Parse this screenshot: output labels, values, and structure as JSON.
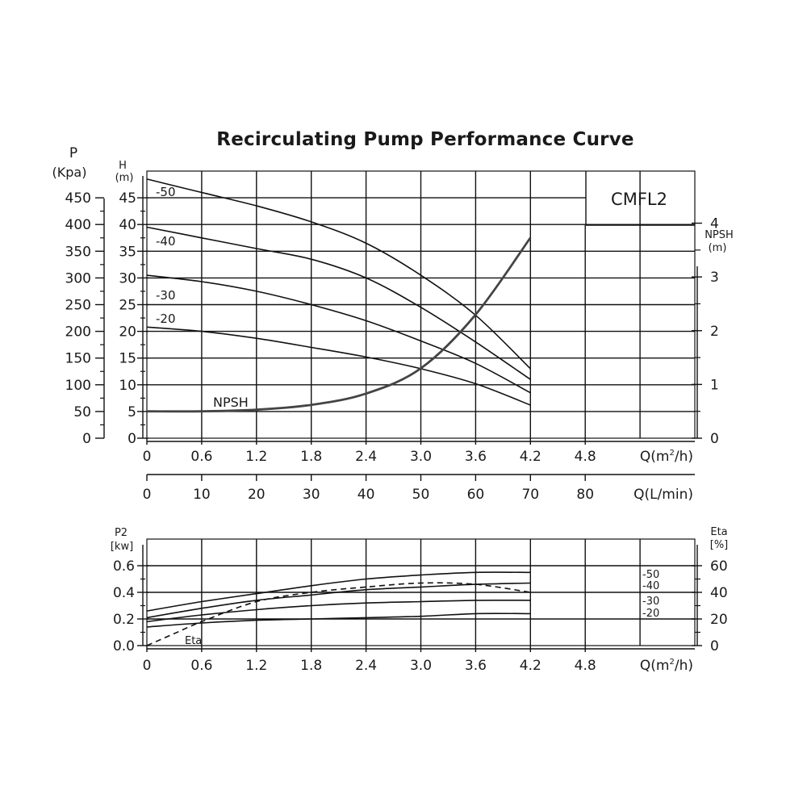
{
  "title": "Recirculating Pump Performance Curve",
  "model": "CMFL2",
  "chart_data": [
    {
      "type": "line",
      "title": "Recirculating Pump Performance Curve",
      "xlabel": "Q(m²/h)",
      "xlabel_parts": {
        "q": "Q(m",
        "sup": "2",
        "tail": "/h)"
      },
      "x_ticks": [
        "0",
        "0.6",
        "1.2",
        "1.8",
        "2.4",
        "3.0",
        "3.6",
        "4.2",
        "4.8"
      ],
      "xlim": [
        0,
        6.0
      ],
      "x2label": "Q(L/min)",
      "x2_ticks": [
        "0",
        "10",
        "20",
        "30",
        "40",
        "50",
        "60",
        "70",
        "80"
      ],
      "y_left_outer_label": {
        "name": "P",
        "unit": "(Kpa)"
      },
      "y_left_outer_ticks": [
        "0",
        "50",
        "100",
        "150",
        "200",
        "250",
        "300",
        "350",
        "400",
        "450"
      ],
      "y_left_label": {
        "name": "H",
        "unit": "(m)"
      },
      "y_left_ticks": [
        "0",
        "5",
        "10",
        "15",
        "20",
        "25",
        "30",
        "35",
        "40",
        "45"
      ],
      "ylim": [
        0,
        50
      ],
      "y_right_label": {
        "name": "NPSH",
        "unit": "(m)"
      },
      "y_right_ticks": [
        "0",
        "1",
        "2",
        "3",
        "4"
      ],
      "y_right_lim": [
        0,
        4
      ],
      "grid": true,
      "series": [
        {
          "name": "-50",
          "axis": "H",
          "x": [
            0,
            0.6,
            1.2,
            1.8,
            2.4,
            3.0,
            3.6,
            4.2
          ],
          "y": [
            48.5,
            46,
            43.5,
            40.5,
            36.5,
            30.5,
            23,
            13
          ]
        },
        {
          "name": "-40",
          "axis": "H",
          "x": [
            0,
            0.6,
            1.2,
            1.8,
            2.4,
            3.0,
            3.6,
            4.2
          ],
          "y": [
            39.5,
            37.5,
            35.5,
            33.5,
            30,
            24.5,
            18,
            11
          ]
        },
        {
          "name": "-30",
          "axis": "H",
          "x": [
            0,
            0.6,
            1.2,
            1.8,
            2.4,
            3.0,
            3.6,
            4.2
          ],
          "y": [
            30.5,
            29.3,
            27.5,
            25,
            22,
            18.2,
            14,
            8.5
          ]
        },
        {
          "name": "-20",
          "axis": "H",
          "x": [
            0,
            0.6,
            1.2,
            1.8,
            2.4,
            3.0,
            3.6,
            4.2
          ],
          "y": [
            20.8,
            20,
            18.7,
            17,
            15.2,
            13,
            10.2,
            6.2
          ]
        },
        {
          "name": "NPSH",
          "axis": "NPSH",
          "x": [
            0,
            0.6,
            1.2,
            1.8,
            2.4,
            3.0,
            3.6,
            4.2
          ],
          "y": [
            0.5,
            0.5,
            0.53,
            0.62,
            0.83,
            1.3,
            2.3,
            3.73
          ]
        }
      ],
      "series_labels": [
        "-50",
        "-40",
        "-30",
        "-20",
        "NPSH"
      ]
    },
    {
      "type": "line",
      "xlabel": "Q(m²/h)",
      "xlabel_parts": {
        "q": "Q(m",
        "sup": "2",
        "tail": "/h)"
      },
      "x_ticks": [
        "0",
        "0.6",
        "1.2",
        "1.8",
        "2.4",
        "3.0",
        "3.6",
        "4.2",
        "4.8"
      ],
      "xlim": [
        0,
        6.0
      ],
      "y_left_label": {
        "name": "P2",
        "unit": "[kw]"
      },
      "y_left_ticks": [
        "0.0",
        "0.2",
        "0.4",
        "0.6"
      ],
      "ylim": [
        0,
        0.6
      ],
      "y_right_label": {
        "name": "Eta",
        "unit": "[%]"
      },
      "y_right_ticks": [
        "0",
        "20",
        "40",
        "60"
      ],
      "y_right_lim": [
        0,
        60
      ],
      "grid": true,
      "series": [
        {
          "name": "-50",
          "axis": "P2",
          "x": [
            0,
            0.6,
            1.2,
            1.8,
            2.4,
            3.0,
            3.6,
            4.2
          ],
          "y": [
            0.26,
            0.33,
            0.39,
            0.45,
            0.5,
            0.53,
            0.55,
            0.55
          ]
        },
        {
          "name": "-40",
          "axis": "P2",
          "x": [
            0,
            0.6,
            1.2,
            1.8,
            2.4,
            3.0,
            3.6,
            4.2
          ],
          "y": [
            0.21,
            0.28,
            0.34,
            0.38,
            0.42,
            0.44,
            0.46,
            0.47
          ]
        },
        {
          "name": "-30",
          "axis": "P2",
          "x": [
            0,
            0.6,
            1.2,
            1.8,
            2.4,
            3.0,
            3.6,
            4.2
          ],
          "y": [
            0.18,
            0.23,
            0.27,
            0.3,
            0.32,
            0.33,
            0.34,
            0.34
          ]
        },
        {
          "name": "-20",
          "axis": "P2",
          "x": [
            0,
            0.6,
            1.2,
            1.8,
            2.4,
            3.0,
            3.6,
            4.2
          ],
          "y": [
            0.14,
            0.17,
            0.19,
            0.2,
            0.21,
            0.22,
            0.24,
            0.24
          ]
        },
        {
          "name": "Eta",
          "axis": "Eta",
          "dashed": true,
          "x": [
            0,
            0.3,
            0.6,
            1.2,
            1.8,
            2.4,
            3.0,
            3.6,
            4.2
          ],
          "y": [
            0,
            9,
            18,
            33,
            40,
            44,
            47,
            46,
            40
          ]
        }
      ],
      "series_labels": [
        "-50",
        "-40",
        "-30",
        "-20",
        "Eta"
      ]
    }
  ]
}
